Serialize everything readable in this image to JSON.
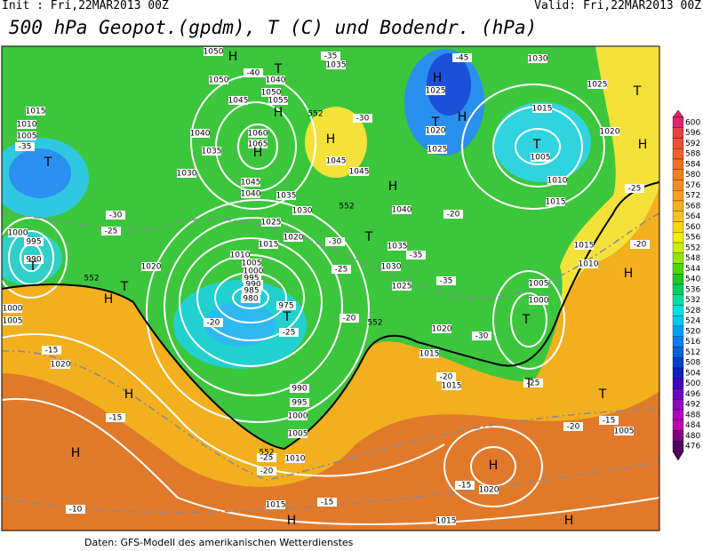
{
  "header": {
    "init": "Init : Fri,22MAR2013 00Z",
    "valid": "Valid: Fri,22MAR2013 00Z",
    "title": "500 hPa Geopot.(gpdm), T (C) und Bodendr. (hPa)"
  },
  "colorbar": {
    "ticks": [
      600,
      596,
      592,
      588,
      584,
      580,
      576,
      572,
      568,
      564,
      560,
      556,
      552,
      548,
      544,
      540,
      536,
      532,
      528,
      524,
      520,
      516,
      512,
      508,
      504,
      500,
      496,
      492,
      488,
      484,
      480,
      476
    ],
    "colors": [
      "#e0246c",
      "#e84040",
      "#f05038",
      "#f06028",
      "#f07020",
      "#f08020",
      "#f09020",
      "#f8a020",
      "#f8b020",
      "#f8c020",
      "#f8d800",
      "#f0f000",
      "#c8f000",
      "#90e800",
      "#50d800",
      "#20c820",
      "#00d060",
      "#00e0a0",
      "#00e0e0",
      "#00c8f0",
      "#00a0f0",
      "#0080f0",
      "#0060e0",
      "#0040d0",
      "#1020c0",
      "#4000c0",
      "#7000c0",
      "#9000c0",
      "#b000c0",
      "#c000b0",
      "#800080",
      "#500060"
    ]
  },
  "pressure_labels": [
    "1050",
    "1050",
    "1040",
    "1050",
    "1045",
    "1055",
    "1060",
    "1065",
    "1040",
    "1035",
    "1030",
    "1045",
    "1040",
    "1035",
    "1030",
    "1025",
    "1020",
    "1015",
    "1010",
    "1005",
    "1000",
    "995",
    "990",
    "985",
    "980",
    "975",
    "990",
    "995",
    "1000",
    "1005",
    "1010",
    "1015",
    "1035",
    "1045",
    "1045",
    "1040",
    "1035",
    "1030",
    "1025",
    "1020",
    "1015",
    "1015",
    "1025",
    "1020",
    "1025",
    "1030",
    "1025",
    "1020",
    "1015",
    "1005",
    "1010",
    "1015",
    "1015",
    "1010",
    "1005",
    "1000",
    "1005",
    "1020",
    "1015",
    "1015",
    "1005",
    "1010",
    "1000",
    "995",
    "990",
    "1020",
    "1000",
    "1005",
    "1020"
  ],
  "centers": [
    "T",
    "H",
    "H",
    "H",
    "H",
    "T",
    "T",
    "H",
    "T",
    "T",
    "T",
    "T",
    "H",
    "H",
    "T",
    "T",
    "H",
    "H",
    "T",
    "T",
    "T",
    "H",
    "H",
    "H",
    "H",
    "H",
    "H"
  ],
  "temperature_labels": [
    "-45",
    "-40",
    "-35",
    "-30",
    "-35",
    "-30",
    "-25",
    "-20",
    "-25",
    "-30",
    "-35",
    "-35",
    "-20",
    "-25",
    "-20",
    "-30",
    "-25",
    "-20",
    "-25",
    "-20",
    "-15",
    "-15",
    "-15",
    "-20",
    "-20",
    "-15",
    "-15",
    "-10",
    "-25"
  ],
  "height_labels": [
    "552",
    "552",
    "552",
    "552",
    "552"
  ],
  "footer": "Daten: GFS-Modell des amerikanischen Wetterdienstes"
}
